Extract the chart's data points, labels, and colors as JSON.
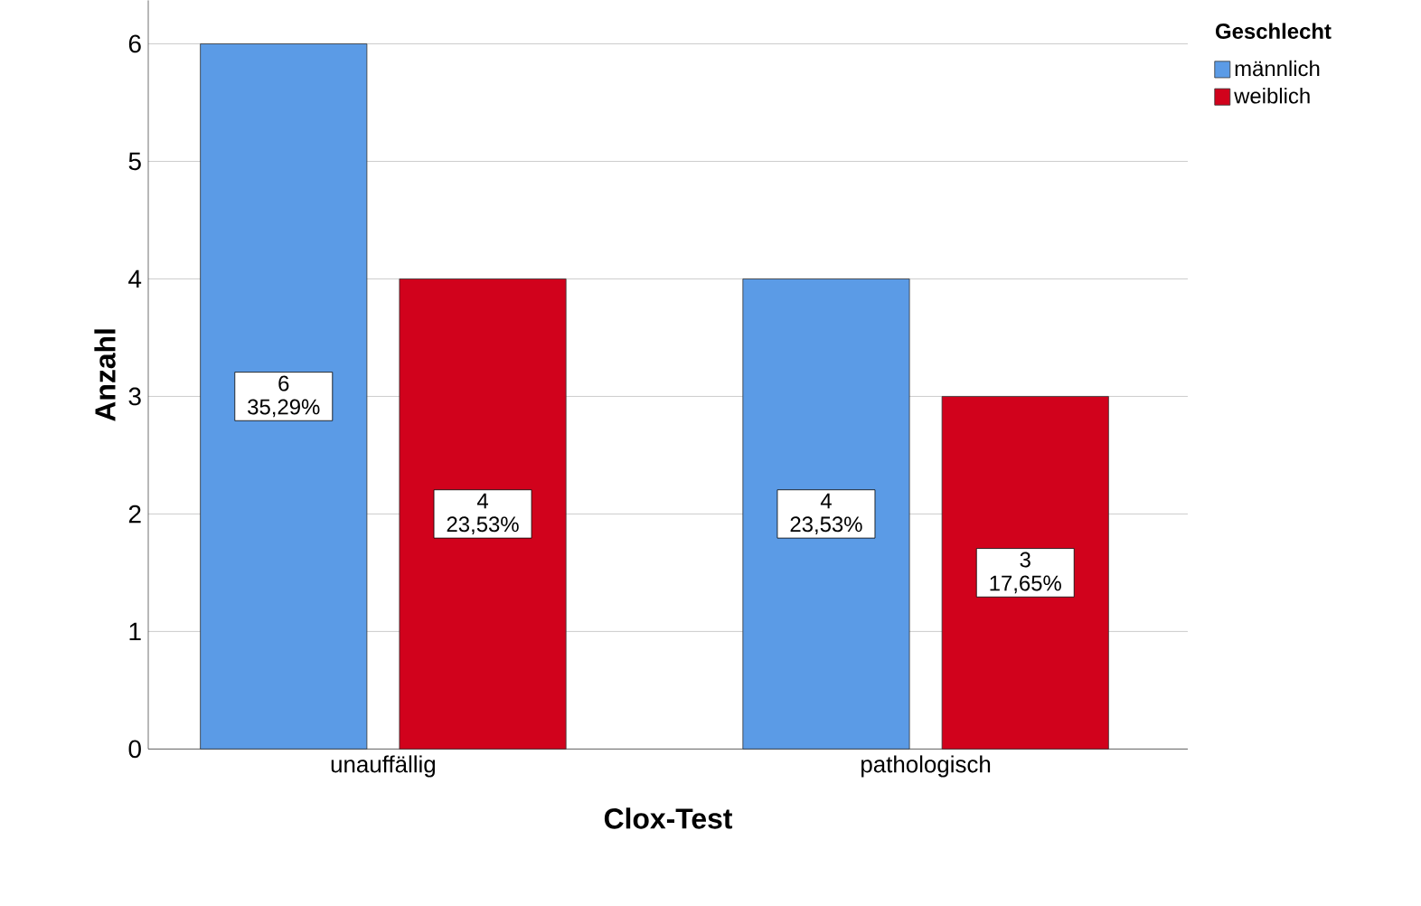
{
  "chart_data": {
    "type": "bar",
    "xlabel": "Clox-Test",
    "ylabel": "Anzahl",
    "legend_title": "Geschlecht",
    "legend": "top right",
    "grid": "y",
    "categories": [
      "unauffällig",
      "pathologisch"
    ],
    "ylim": [
      0,
      6.37
    ],
    "yticks": [
      0,
      1,
      2,
      3,
      4,
      5,
      6
    ],
    "series": [
      {
        "name": "männlich",
        "color": "#5b9be6",
        "values": [
          6,
          4
        ],
        "value_labels": [
          "6 35,29%",
          "4 23,53%"
        ]
      },
      {
        "name": "weiblich",
        "color": "#d1021c",
        "values": [
          4,
          3
        ],
        "value_labels": [
          "4 23,53%",
          "3 17,65%"
        ]
      }
    ]
  }
}
